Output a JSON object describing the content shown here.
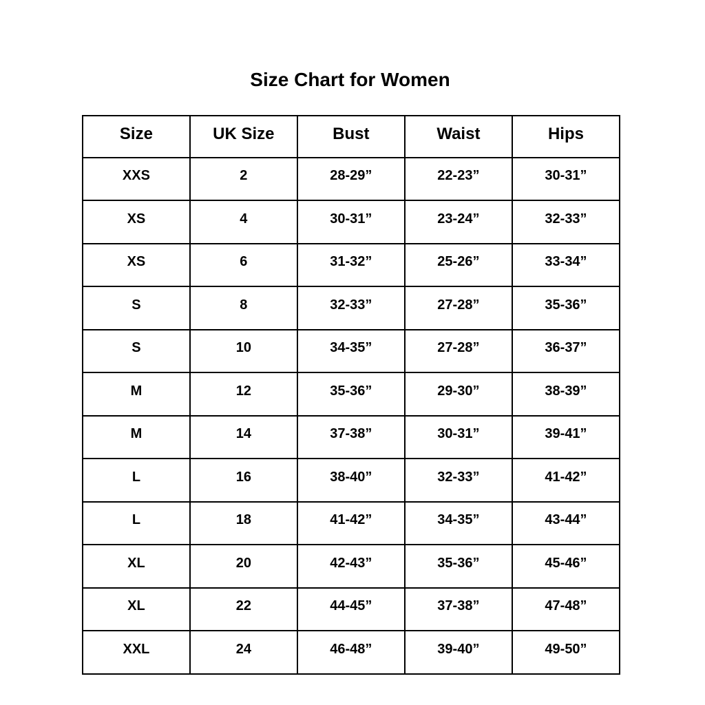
{
  "title": "Size Chart for Women",
  "table": {
    "headers": [
      "Size",
      "UK Size",
      "Bust",
      "Waist",
      "Hips"
    ],
    "rows": [
      [
        "XXS",
        "2",
        "28-29”",
        "22-23”",
        "30-31”"
      ],
      [
        "XS",
        "4",
        "30-31”",
        "23-24”",
        "32-33”"
      ],
      [
        "XS",
        "6",
        "31-32”",
        "25-26”",
        "33-34”"
      ],
      [
        "S",
        "8",
        "32-33”",
        "27-28”",
        "35-36”"
      ],
      [
        "S",
        "10",
        "34-35”",
        "27-28”",
        "36-37”"
      ],
      [
        "M",
        "12",
        "35-36”",
        "29-30”",
        "38-39”"
      ],
      [
        "M",
        "14",
        "37-38”",
        "30-31”",
        "39-41”"
      ],
      [
        "L",
        "16",
        "38-40”",
        "32-33”",
        "41-42”"
      ],
      [
        "L",
        "18",
        "41-42”",
        "34-35”",
        "43-44”"
      ],
      [
        "XL",
        "20",
        "42-43”",
        "35-36”",
        "45-46”"
      ],
      [
        "XL",
        "22",
        "44-45”",
        "37-38”",
        "47-48”"
      ],
      [
        "XXL",
        "24",
        "46-48”",
        "39-40”",
        "49-50”"
      ]
    ]
  }
}
